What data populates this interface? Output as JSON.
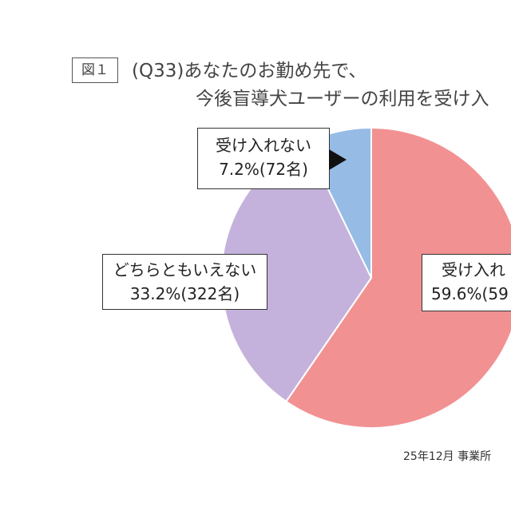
{
  "figure_label": "図１",
  "chart_data": {
    "type": "pie",
    "title_lines": [
      "(Q33)あなたのお勤め先で、",
      "今後盲導犬ユーザーの利用を受け入"
    ],
    "slices": [
      {
        "label": "受け入れ",
        "value": 59.6,
        "display": "59.6%(59",
        "color": "#F29192"
      },
      {
        "label": "どちらともいえない",
        "value": 33.2,
        "display": "33.2%(322名)",
        "color": "#C4B2DC"
      },
      {
        "label": "受け入れない",
        "value": 7.2,
        "display": "7.2%(72名)",
        "color": "#96BCE6"
      }
    ]
  },
  "footer": "25年12月 事業所"
}
